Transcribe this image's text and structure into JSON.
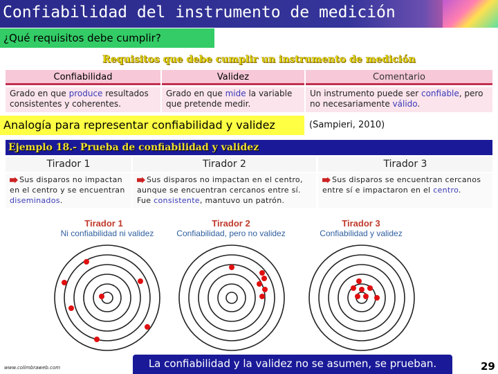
{
  "title": "Confiabilidad del instrumento de medición",
  "subtitle": "¿Qué requisitos debe cumplir?",
  "requirements": {
    "title": "Requisitos que debe cumplir un instrumento de medición",
    "headers": [
      "Confiabilidad",
      "Validez",
      "Comentario"
    ],
    "confiabilidad": {
      "pre": "Grado en que ",
      "hl": "produce",
      "post": " resultados consistentes y coherentes."
    },
    "validez": {
      "pre": "Grado en que ",
      "hl": "mide",
      "post": " la variable que pretende medir."
    },
    "comentario": {
      "pre": "Un instrumento puede ser ",
      "hl": "confiable",
      "mid": ", pero no necesariamente ",
      "hl2": "válido",
      "post": "."
    }
  },
  "analogy": "Analogía para representar confiabilidad y validez",
  "citation": "(Sampieri, 2010)",
  "example": {
    "title": "Ejemplo 18.- Prueba de confiabilidad y validez",
    "shooters": [
      {
        "name": "Tirador 1",
        "pre": "Sus disparos no impactan en el centro y se encuentran ",
        "hl": "diseminados",
        "post": "."
      },
      {
        "name": "Tirador 2",
        "pre": "Sus disparos no impactan en el centro, aunque se  encuentran cercanos entre sí. Fue ",
        "hl": "consistente",
        "post": ", mantuvo un patrón."
      },
      {
        "name": "Tirador 3",
        "pre": "Sus disparos se encuentran cercanos entre sí e impactaron en el ",
        "hl": "centro",
        "post": "."
      }
    ]
  },
  "targets": [
    {
      "title": "Tirador 1",
      "subtitle": "Ni confiabilidad ni validez"
    },
    {
      "title": "Tirador 2",
      "subtitle": "Confiabilidad, pero no validez"
    },
    {
      "title": "Tirador 3",
      "subtitle": "Confiabilidad y validez"
    }
  ],
  "footer": {
    "url": "www.colimbraweb.com",
    "message": "La confiabilidad y la validez no se asumen, se prueban.",
    "page": "29"
  },
  "colors": {
    "shot": "#e01010",
    "ring": "#222222",
    "header_bar": "#1a1a99",
    "yellow": "#ffff44",
    "green": "#33cc66"
  }
}
